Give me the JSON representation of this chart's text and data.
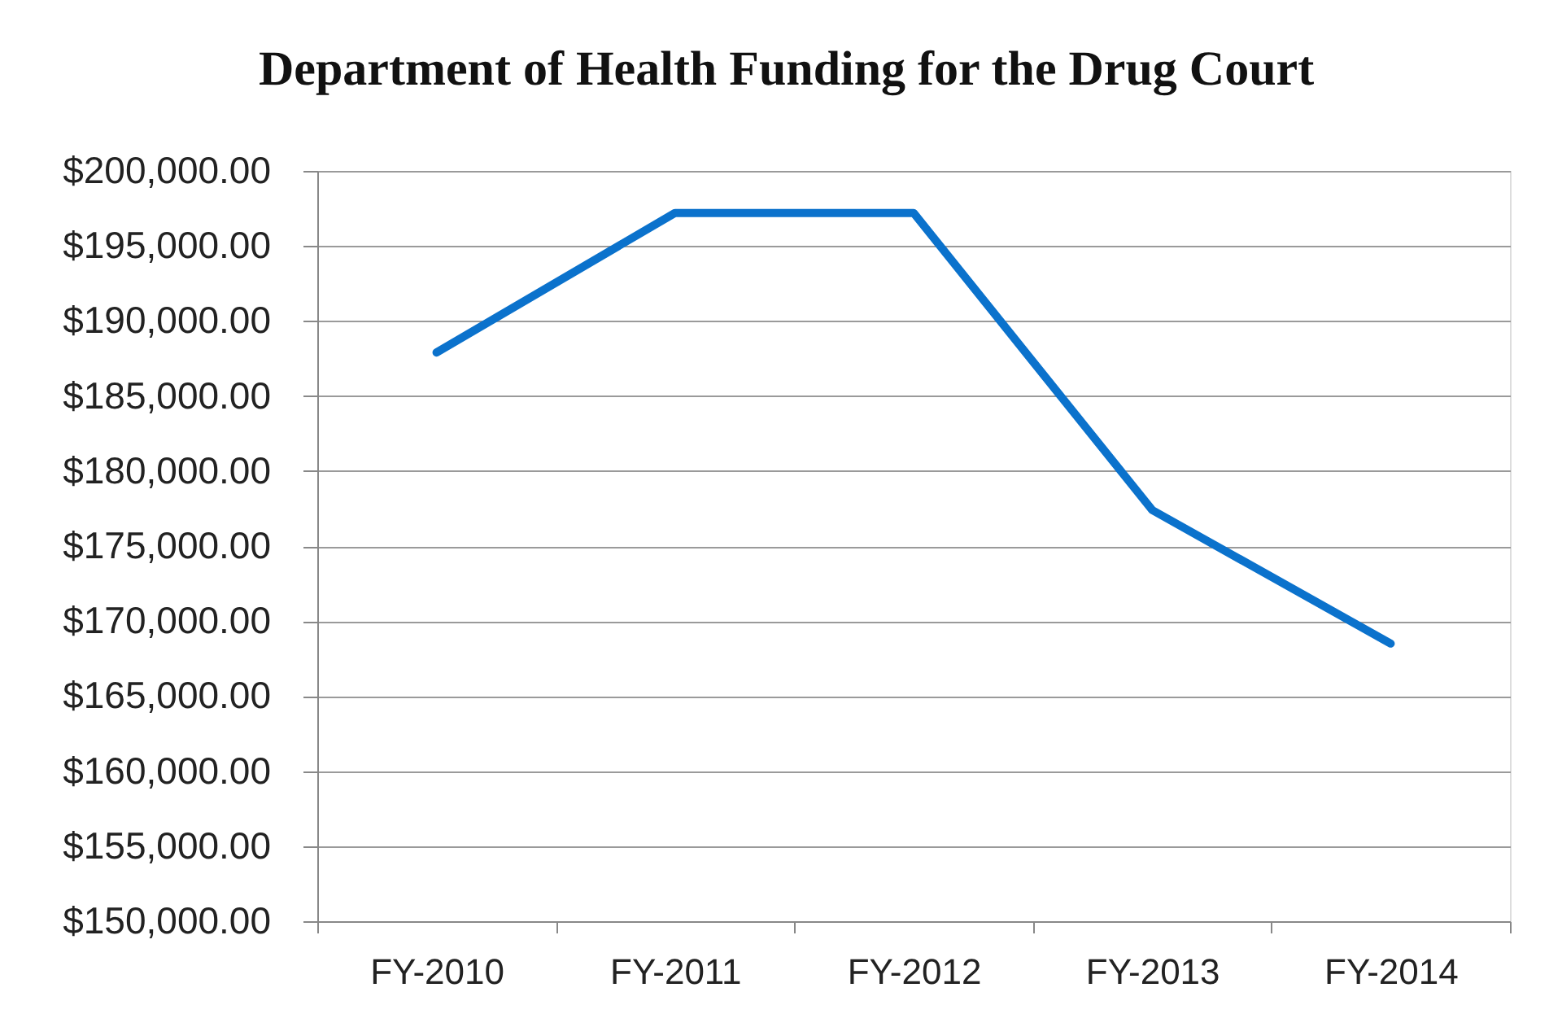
{
  "chart_data": {
    "type": "line",
    "title": "Department of Health Funding for the Drug Court",
    "categories": [
      "FY-2010",
      "FY-2011",
      "FY-2012",
      "FY-2013",
      "FY-2014"
    ],
    "series": [
      {
        "color": "#0b72cc",
        "values": [
          187900,
          197200,
          197200,
          177400,
          168500
        ]
      }
    ],
    "ylim": [
      150000,
      200000
    ],
    "yticks": [
      {
        "value": 150000,
        "label": "$150,000.00"
      },
      {
        "value": 155000,
        "label": "$155,000.00"
      },
      {
        "value": 160000,
        "label": "$160,000.00"
      },
      {
        "value": 165000,
        "label": "$165,000.00"
      },
      {
        "value": 170000,
        "label": "$170,000.00"
      },
      {
        "value": 175000,
        "label": "$175,000.00"
      },
      {
        "value": 180000,
        "label": "$180,000.00"
      },
      {
        "value": 185000,
        "label": "$185,000.00"
      },
      {
        "value": 190000,
        "label": "$190,000.00"
      },
      {
        "value": 195000,
        "label": "$195,000.00"
      },
      {
        "value": 200000,
        "label": "$200,000.00"
      }
    ],
    "grid": "y"
  }
}
